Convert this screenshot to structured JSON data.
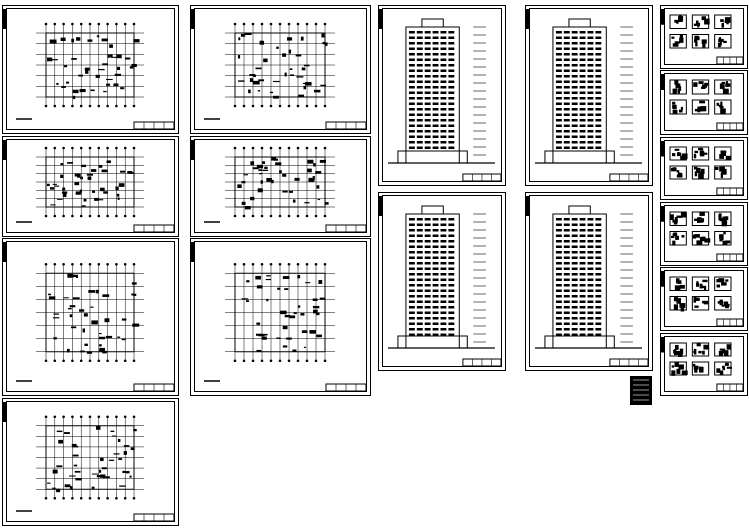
{
  "colors": {
    "background": "#ffffff",
    "line": "#000000"
  },
  "sheets": [
    {
      "kind": "plan"
    },
    {
      "kind": "plan"
    },
    {
      "kind": "plan"
    },
    {
      "kind": "plan"
    },
    {
      "kind": "plan"
    },
    {
      "kind": "plan"
    },
    {
      "kind": "plan"
    },
    {
      "kind": "elevation"
    },
    {
      "kind": "elevation"
    },
    {
      "kind": "elevation"
    },
    {
      "kind": "elevation"
    },
    {
      "kind": "detail"
    },
    {
      "kind": "detail"
    },
    {
      "kind": "detail"
    },
    {
      "kind": "detail"
    },
    {
      "kind": "detail"
    },
    {
      "kind": "detail"
    }
  ]
}
